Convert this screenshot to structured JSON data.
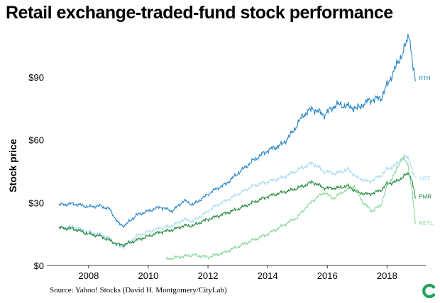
{
  "chart_data": {
    "type": "line",
    "title": "Retail exchange-traded-fund stock performance",
    "xlabel": "",
    "ylabel": "Stock price",
    "xlim": [
      2006.6,
      2019.3
    ],
    "ylim": [
      0,
      112
    ],
    "x_ticks": [
      2008,
      2010,
      2012,
      2014,
      2016,
      2018
    ],
    "x_tick_labels": [
      "2008",
      "2010",
      "2012",
      "2014",
      "2016",
      "2018"
    ],
    "y_ticks": [
      0,
      30,
      60,
      90
    ],
    "y_tick_labels": [
      "$0",
      "$30",
      "$60",
      "$90"
    ],
    "grid": false,
    "source": "Source: Yahoo! Stocks (David H. Montgomery/CityLab)",
    "series": [
      {
        "name": "RTH",
        "color": "#2a86c7",
        "x": [
          2007.0,
          2007.5,
          2008.0,
          2008.4,
          2008.7,
          2009.0,
          2009.2,
          2009.6,
          2010.0,
          2010.4,
          2010.8,
          2011.2,
          2011.5,
          2011.8,
          2012.2,
          2012.6,
          2013.0,
          2013.5,
          2014.0,
          2014.5,
          2014.8,
          2015.2,
          2015.5,
          2015.9,
          2016.3,
          2016.7,
          2017.0,
          2017.4,
          2017.8,
          2018.0,
          2018.3,
          2018.6,
          2018.75,
          2018.85,
          2018.95
        ],
        "values": [
          29,
          29.5,
          28,
          28.5,
          27,
          20,
          19,
          24,
          26,
          28,
          26,
          31,
          29,
          32,
          36,
          39,
          44,
          50,
          55,
          58,
          63,
          72,
          75,
          72,
          77,
          76,
          75,
          79,
          80,
          86,
          95,
          104,
          111,
          97,
          88
        ]
      },
      {
        "name": "XRT",
        "color": "#a9dcf2",
        "x": [
          2007.0,
          2007.5,
          2008.0,
          2008.4,
          2008.7,
          2009.0,
          2009.2,
          2009.6,
          2010.0,
          2010.4,
          2010.8,
          2011.2,
          2011.5,
          2011.8,
          2012.2,
          2012.6,
          2013.0,
          2013.5,
          2014.0,
          2014.5,
          2014.8,
          2015.2,
          2015.5,
          2015.9,
          2016.3,
          2016.7,
          2017.0,
          2017.4,
          2017.8,
          2018.0,
          2018.3,
          2018.6,
          2018.75,
          2018.85,
          2018.95
        ],
        "values": [
          18,
          18.5,
          16,
          15,
          13,
          9,
          9,
          14,
          16,
          18,
          19,
          22,
          21,
          24,
          28,
          31,
          34,
          38,
          40,
          42,
          44,
          47,
          49,
          45,
          44,
          46,
          42,
          40,
          43,
          46,
          48,
          52,
          51,
          45,
          42
        ]
      },
      {
        "name": "PMR",
        "color": "#23883a",
        "x": [
          2007.0,
          2007.5,
          2008.0,
          2008.4,
          2008.7,
          2009.0,
          2009.2,
          2009.6,
          2010.0,
          2010.4,
          2010.8,
          2011.2,
          2011.5,
          2011.8,
          2012.2,
          2012.6,
          2013.0,
          2013.5,
          2014.0,
          2014.5,
          2014.8,
          2015.2,
          2015.5,
          2015.9,
          2016.3,
          2016.7,
          2017.0,
          2017.4,
          2017.8,
          2018.0,
          2018.3,
          2018.6,
          2018.75,
          2018.85,
          2018.95
        ],
        "values": [
          18,
          17.5,
          15,
          14,
          12,
          10,
          10,
          12,
          14,
          16,
          17,
          19,
          19,
          21,
          23,
          25,
          27,
          30,
          33,
          35,
          36,
          38,
          40,
          37,
          37,
          38,
          35,
          34,
          36,
          39,
          40,
          43,
          44,
          40,
          32
        ]
      },
      {
        "name": "RETL",
        "color": "#88d79a",
        "x": [
          2010.6,
          2011.0,
          2011.5,
          2012.0,
          2012.5,
          2013.0,
          2013.5,
          2014.0,
          2014.5,
          2015.0,
          2015.3,
          2015.6,
          2015.9,
          2016.2,
          2016.5,
          2016.9,
          2017.2,
          2017.5,
          2017.8,
          2018.0,
          2018.3,
          2018.5,
          2018.7,
          2018.85,
          2018.95
        ],
        "values": [
          3,
          4,
          5,
          4,
          6,
          9,
          12,
          15,
          19,
          23,
          28,
          32,
          35,
          32,
          35,
          38,
          30,
          26,
          29,
          38,
          45,
          52,
          48,
          35,
          20
        ]
      }
    ]
  }
}
